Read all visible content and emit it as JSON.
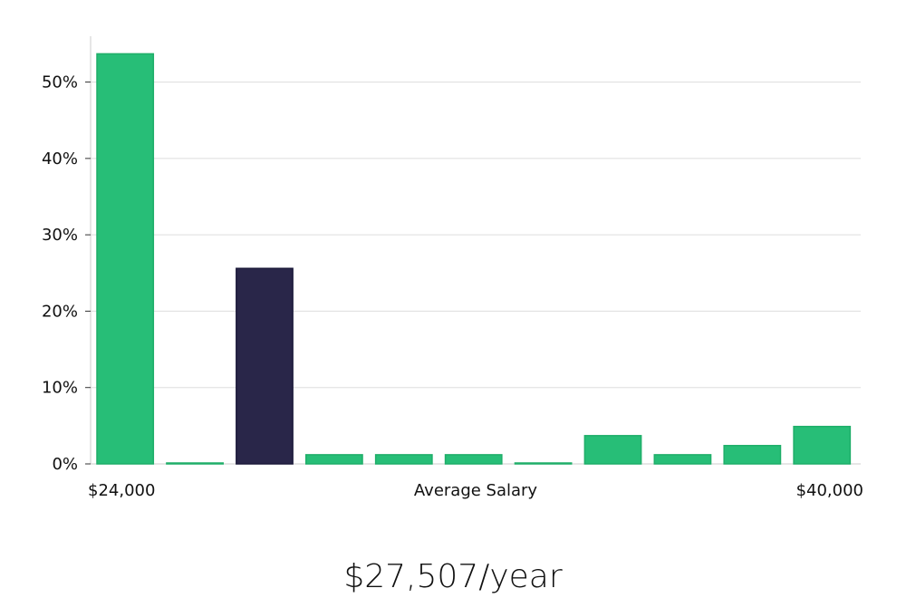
{
  "chart_data": {
    "type": "bar",
    "title": "",
    "xlabel": "Average Salary",
    "ylabel": "",
    "x_range_labels": {
      "min": "$24,000",
      "max": "$40,000"
    },
    "y_ticks": [
      0,
      10,
      20,
      30,
      40,
      50
    ],
    "y_tick_labels": [
      "0%",
      "10%",
      "20%",
      "30%",
      "40%",
      "50%"
    ],
    "ylim": [
      0,
      56
    ],
    "grid": true,
    "values": [
      53.7,
      0.1,
      25.6,
      1.2,
      1.2,
      1.2,
      0.1,
      3.7,
      1.2,
      2.4,
      4.9
    ],
    "highlight_index": 2,
    "colors": {
      "bar": "#27BE77",
      "bar_highlight": "#292649",
      "grid": "#DDDDDD",
      "axis": "#CCCCCC"
    },
    "summary": "$27,507/year"
  }
}
